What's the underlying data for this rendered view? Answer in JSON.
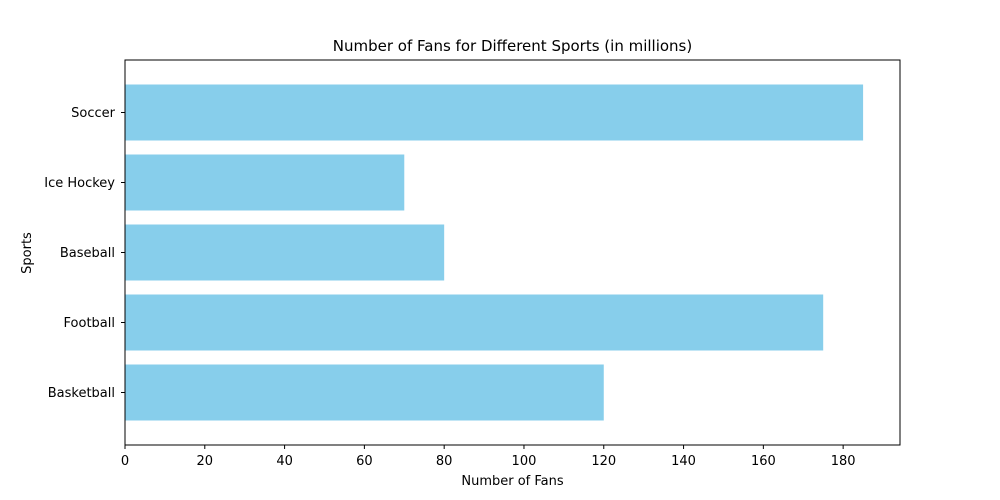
{
  "chart_data": {
    "type": "bar",
    "orientation": "horizontal",
    "title": "Number of Fans for Different Sports (in millions)",
    "xlabel": "Number of Fans",
    "ylabel": "Sports",
    "categories": [
      "Basketball",
      "Football",
      "Baseball",
      "Ice Hockey",
      "Soccer"
    ],
    "values": [
      120,
      175,
      80,
      70,
      185
    ],
    "xlim": [
      0,
      194.25
    ],
    "xticks": [
      0,
      20,
      40,
      60,
      80,
      100,
      120,
      140,
      160,
      180
    ],
    "bar_color": "#87ceeb",
    "grid": false,
    "legend": "none"
  }
}
